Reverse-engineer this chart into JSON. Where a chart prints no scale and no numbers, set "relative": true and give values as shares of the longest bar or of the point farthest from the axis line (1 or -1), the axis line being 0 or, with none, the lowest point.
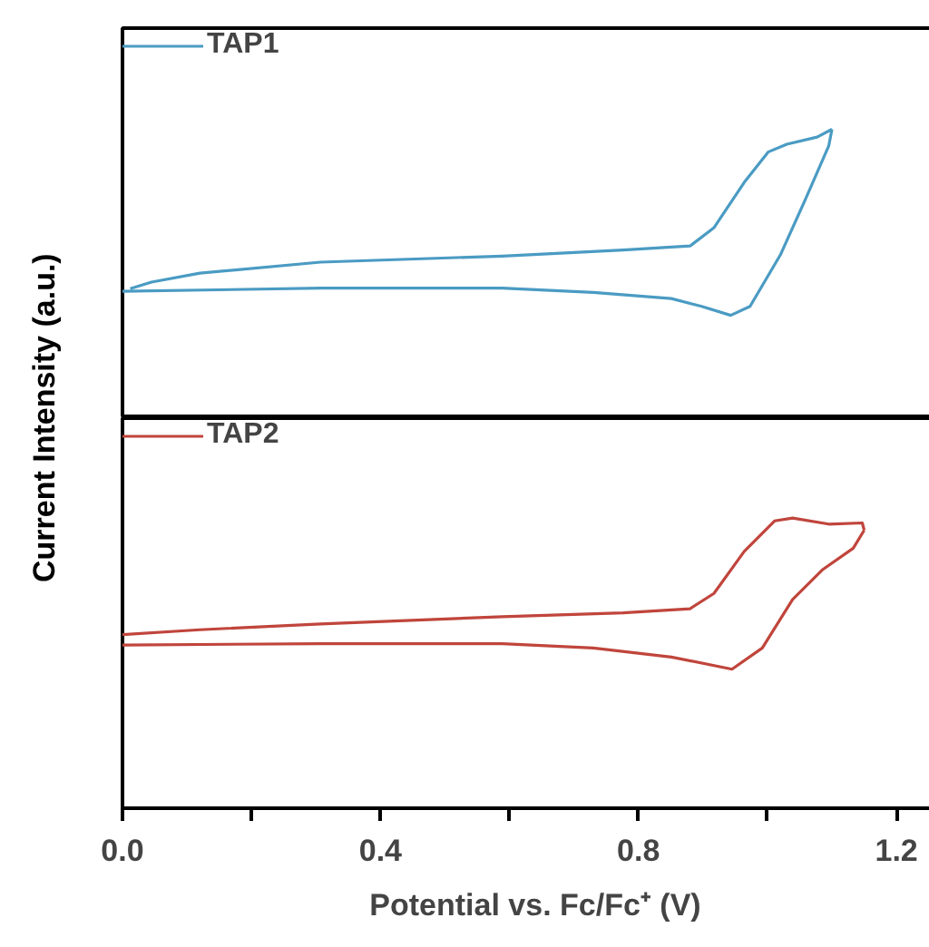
{
  "chart_data": [
    {
      "type": "line",
      "relative": true,
      "xlim": [
        0,
        1.28
      ],
      "tick_labels": false,
      "legend": "top left",
      "grid": false,
      "series": [
        {
          "name": "TAP1",
          "color": "#4a9bc3",
          "x": [
            0.0,
            0.307,
            0.589,
            0.73,
            0.851,
            0.898,
            0.943,
            0.973,
            1.02,
            1.058,
            1.095,
            1.1
          ],
          "values": [
            0.439,
            0.45,
            0.45,
            0.435,
            0.414,
            0.387,
            0.356,
            0.387,
            0.565,
            0.753,
            0.942,
            1.0
          ]
        },
        {
          "color": "#4a9bc3",
          "x": [
            1.1,
            1.077,
            1.03,
            1.001,
            0.964,
            0.917,
            0.88,
            0.776,
            0.589,
            0.307,
            0.12,
            0.045,
            0.012
          ],
          "values": [
            1.0,
            0.973,
            0.948,
            0.921,
            0.816,
            0.659,
            0.596,
            0.582,
            0.561,
            0.54,
            0.502,
            0.471,
            0.448
          ]
        }
      ]
    },
    {
      "type": "line",
      "relative": true,
      "xlim": [
        0,
        1.28
      ],
      "xticks": [
        {
          "value": 0,
          "label": "0.0"
        },
        {
          "value": 0.2,
          "label": null
        },
        {
          "value": 0.4,
          "label": "0.4"
        },
        {
          "value": 0.6,
          "label": null
        },
        {
          "value": 0.8,
          "label": "0.8"
        },
        {
          "value": 1.0,
          "label": null
        },
        {
          "value": 1.2,
          "label": "1.2"
        }
      ],
      "xlabel": "Potential vs. Fc/Fc⁺ (V)",
      "ylabel": "Current Intensity (a.u.)",
      "tick_labels": "x",
      "legend": "top left",
      "grid": false,
      "series": [
        {
          "name": "TAP2",
          "color": "#c0453c",
          "x": [
            0.0,
            0.307,
            0.589,
            0.73,
            0.851,
            0.945,
            0.992,
            1.039,
            1.086,
            1.133,
            1.15
          ],
          "values": [
            0.5625,
            0.567,
            0.567,
            0.552,
            0.521,
            0.479,
            0.552,
            0.719,
            0.823,
            0.896,
            0.958
          ]
        },
        {
          "color": "#c0453c",
          "x": [
            1.15,
            1.147,
            1.095,
            1.039,
            1.011,
            0.964,
            0.917,
            0.88,
            0.776,
            0.589,
            0.307,
            0.12,
            0.0
          ],
          "values": [
            0.958,
            0.983,
            0.979,
            1.0,
            0.99,
            0.885,
            0.74,
            0.6875,
            0.673,
            0.66,
            0.635,
            0.615,
            0.598
          ]
        }
      ]
    }
  ]
}
